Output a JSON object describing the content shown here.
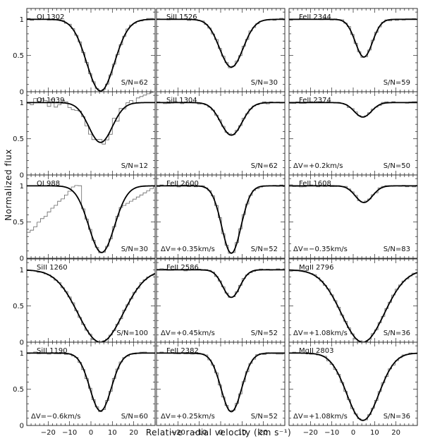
{
  "figure": {
    "ylabel": "Normalized flux",
    "xlabel": "Relative radial velocity (km s⁻¹)"
  },
  "chart_data": {
    "type": "line",
    "layout": "5 rows x 3 columns of panels",
    "xlim": [
      -30,
      30
    ],
    "ylim": [
      0,
      1.15
    ],
    "xticks": [
      -20,
      -10,
      0,
      10,
      20
    ],
    "yticks": [
      0,
      0.5,
      1
    ],
    "ytick_labels": [
      "0",
      "0.5",
      "1"
    ],
    "xtick_labels": [
      "−20",
      "−10",
      "0",
      "10",
      "20"
    ],
    "panels": [
      {
        "label": "OI 1302",
        "sn": "S/N=62",
        "dv": "",
        "center": 4.5,
        "depth": 0.99,
        "width": 6.5,
        "hidden_xticks": true
      },
      {
        "label": "SiII 1526",
        "sn": "S/N=30",
        "dv": "",
        "center": 5.0,
        "depth": 0.66,
        "width": 5.5,
        "hidden_xticks": true
      },
      {
        "label": "FeII 2344",
        "sn": "S/N=59",
        "dv": "",
        "center": 5.0,
        "depth": 0.52,
        "width": 4.0,
        "hidden_xticks": true
      },
      {
        "label": "OI 1039",
        "sn": "S/N=12",
        "dv": "",
        "center": 4.5,
        "depth": 0.55,
        "width": 5.5,
        "hidden_xticks": true
      },
      {
        "label": "SiII 1304",
        "sn": "S/N=62",
        "dv": "",
        "center": 5.0,
        "depth": 0.45,
        "width": 5.0,
        "hidden_xticks": true
      },
      {
        "label": "FeII 2374",
        "sn": "S/N=50",
        "dv": "ΔV=+0.2km/s",
        "center": 4.5,
        "depth": 0.2,
        "width": 4.0,
        "hidden_xticks": true
      },
      {
        "label": "OI 988",
        "sn": "S/N=30",
        "dv": "",
        "center": 5.0,
        "depth": 0.92,
        "width": 6.0,
        "hidden_xticks": true
      },
      {
        "label": "FeII 2600",
        "sn": "S/N=52",
        "dv": "ΔV=+0.35km/s",
        "center": 5.0,
        "depth": 0.93,
        "width": 4.5,
        "hidden_xticks": true
      },
      {
        "label": "FeII 1608",
        "sn": "S/N=83",
        "dv": "ΔV=−0.35km/s",
        "center": 5.0,
        "depth": 0.23,
        "width": 4.0,
        "hidden_xticks": true
      },
      {
        "label": "SiII 1260",
        "sn": "S/N=100",
        "dv": "",
        "center": 4.5,
        "depth": 1.0,
        "width": 10.5,
        "hidden_xticks": true
      },
      {
        "label": "FeII 2586",
        "sn": "S/N=52",
        "dv": "ΔV=+0.45km/s",
        "center": 5.0,
        "depth": 0.38,
        "width": 4.0,
        "hidden_xticks": true
      },
      {
        "label": "MgII 2796",
        "sn": "S/N=36",
        "dv": "ΔV=+1.08km/s",
        "center": 4.5,
        "depth": 1.0,
        "width": 10.0,
        "hidden_xticks": true
      },
      {
        "label": "SiII 1190",
        "sn": "S/N=60",
        "dv": "ΔV=−0.6km/s",
        "center": 4.5,
        "depth": 0.8,
        "width": 5.0,
        "hidden_xticks": false
      },
      {
        "label": "FeII 2382",
        "sn": "S/N=52",
        "dv": "ΔV=+0.25km/s",
        "center": 5.0,
        "depth": 0.81,
        "width": 4.8,
        "hidden_xticks": false
      },
      {
        "label": "MgII 2803",
        "sn": "S/N=36",
        "dv": "ΔV=+1.08km/s",
        "center": 4.5,
        "depth": 0.93,
        "width": 7.5,
        "hidden_xticks": false
      }
    ]
  }
}
